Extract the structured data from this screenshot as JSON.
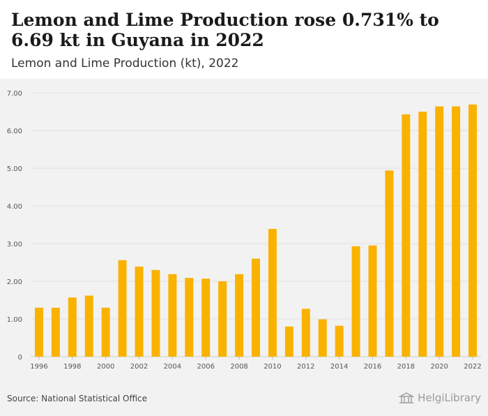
{
  "header": {
    "title": "Lemon and Lime Production rose 0.731% to 6.69 kt in Guyana in 2022",
    "subtitle": "Lemon and Lime Production (kt), 2022"
  },
  "footer": {
    "source": "Source: National Statistical Office",
    "brand": "HelgiLibrary"
  },
  "colors": {
    "bar": "#F9B200",
    "grid": "#e0e0e0",
    "background": "#f2f2f2"
  },
  "chart_data": {
    "type": "bar",
    "title": "",
    "xlabel": "",
    "ylabel": "",
    "ylim": [
      0,
      7
    ],
    "yticks": [
      0,
      1,
      2,
      3,
      4,
      5,
      6,
      7
    ],
    "ytick_labels": [
      "0",
      "1.00",
      "2.00",
      "3.00",
      "4.00",
      "5.00",
      "6.00",
      "7.00"
    ],
    "xtick_labels": [
      "1996",
      "1998",
      "2000",
      "2002",
      "2004",
      "2006",
      "2008",
      "2010",
      "2012",
      "2014",
      "2016",
      "2018",
      "2020",
      "2022"
    ],
    "grid": true,
    "categories": [
      "1996",
      "1997",
      "1998",
      "1999",
      "2000",
      "2001",
      "2002",
      "2003",
      "2004",
      "2005",
      "2006",
      "2007",
      "2008",
      "2009",
      "2010",
      "2011",
      "2012",
      "2013",
      "2014",
      "2015",
      "2016",
      "2017",
      "2018",
      "2019",
      "2020",
      "2021",
      "2022"
    ],
    "values": [
      1.3,
      1.3,
      1.57,
      1.62,
      1.3,
      2.56,
      2.39,
      2.3,
      2.19,
      2.09,
      2.07,
      2.0,
      2.19,
      2.6,
      3.39,
      0.8,
      1.27,
      0.99,
      0.82,
      2.93,
      2.95,
      4.94,
      6.43,
      6.5,
      6.64,
      6.64,
      6.69
    ]
  }
}
